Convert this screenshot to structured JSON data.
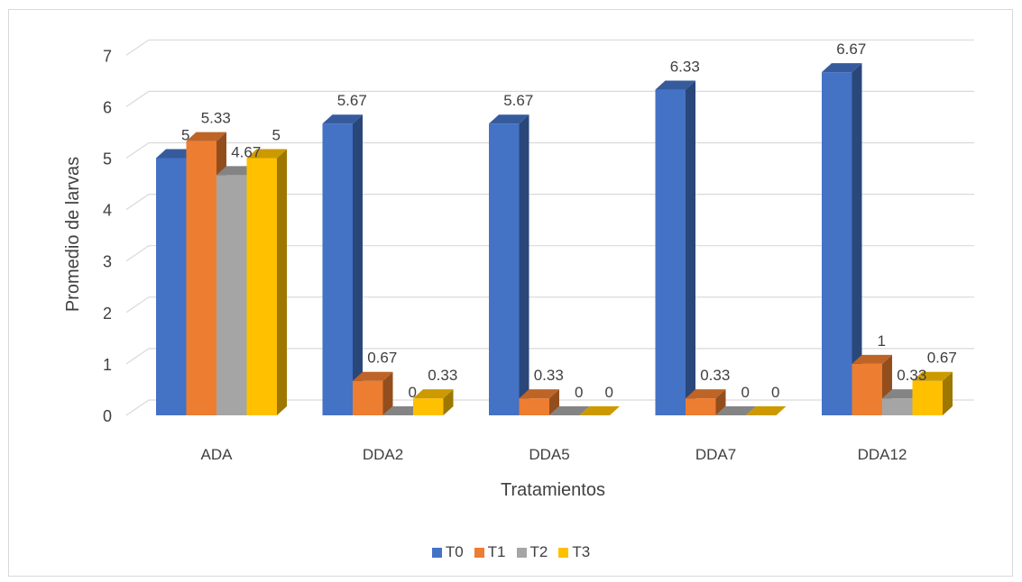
{
  "chart_data": {
    "type": "bar",
    "title": "",
    "xlabel": "Tratamientos",
    "ylabel": "Promedio de larvas",
    "ylim": [
      0,
      7
    ],
    "yticks": [
      "0",
      "1",
      "2",
      "3",
      "4",
      "5",
      "6",
      "7"
    ],
    "categories": [
      "ADA",
      "DDA2",
      "DDA5",
      "DDA7",
      "DDA12"
    ],
    "series": [
      {
        "name": "T0",
        "color": "#4472c4",
        "values": [
          5,
          5.67,
          5.67,
          6.33,
          6.67
        ],
        "labels": [
          "5",
          "5.67",
          "5.67",
          "6.33",
          "6.67"
        ]
      },
      {
        "name": "T1",
        "color": "#ed7d31",
        "values": [
          5.33,
          0.67,
          0.33,
          0.33,
          1
        ],
        "labels": [
          "5.33",
          "0.67",
          "0.33",
          "0.33",
          "1"
        ]
      },
      {
        "name": "T2",
        "color": "#a5a5a5",
        "values": [
          4.67,
          0,
          0,
          0,
          0.33
        ],
        "labels": [
          "4.67",
          "0",
          "0",
          "0",
          "0.33"
        ]
      },
      {
        "name": "T3",
        "color": "#ffc000",
        "values": [
          5,
          0.33,
          0,
          0,
          0.67
        ],
        "labels": [
          "5",
          "0.33",
          "0",
          "0",
          "0.67"
        ]
      }
    ],
    "grid": true,
    "legend": "bottom"
  }
}
